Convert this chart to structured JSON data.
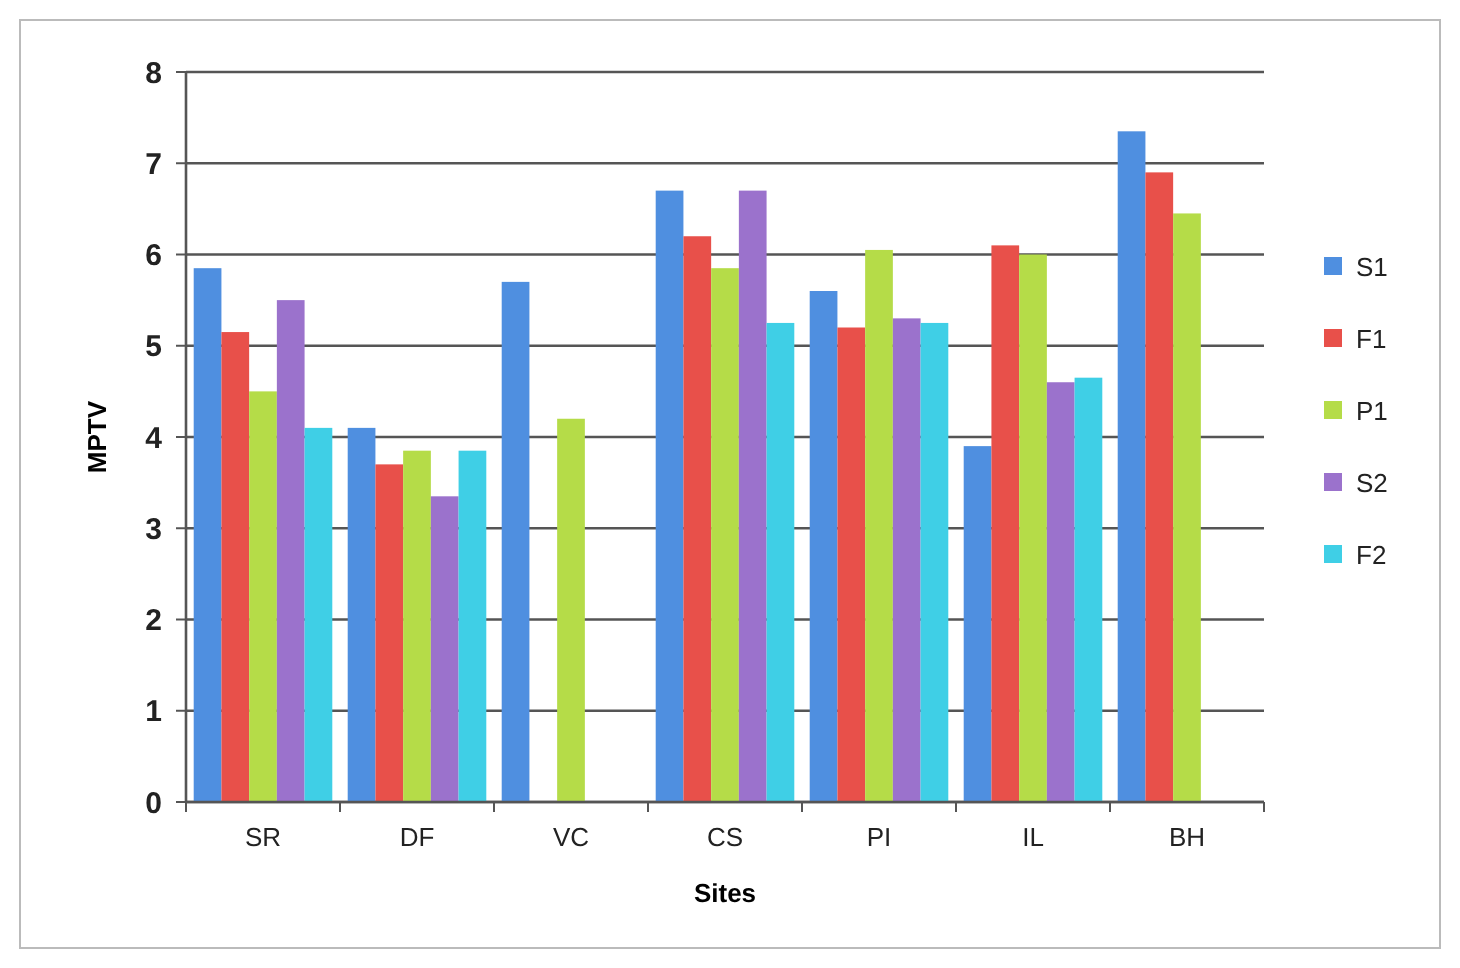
{
  "chart_data": {
    "type": "bar",
    "xlabel": "Sites",
    "ylabel": "MPTV",
    "categories": [
      "SR",
      "DF",
      "VC",
      "CS",
      "PI",
      "IL",
      "BH"
    ],
    "series": [
      {
        "name": "S1",
        "color": "#4f8fe0",
        "values": [
          5.85,
          4.1,
          5.7,
          6.7,
          5.6,
          3.9,
          7.35
        ]
      },
      {
        "name": "F1",
        "color": "#e8504a",
        "values": [
          5.15,
          3.7,
          null,
          6.2,
          5.2,
          6.1,
          6.9
        ]
      },
      {
        "name": "P1",
        "color": "#b5dc48",
        "values": [
          4.5,
          3.85,
          4.2,
          5.85,
          6.05,
          6.0,
          6.45
        ]
      },
      {
        "name": "S2",
        "color": "#9b72cc",
        "values": [
          5.5,
          3.35,
          null,
          6.7,
          5.3,
          4.6,
          null
        ]
      },
      {
        "name": "F2",
        "color": "#3fcfe6",
        "values": [
          4.1,
          3.85,
          null,
          5.25,
          5.25,
          4.65,
          null
        ]
      }
    ],
    "ylim": [
      0,
      8
    ],
    "yticks": [
      0,
      1,
      2,
      3,
      4,
      5,
      6,
      7,
      8
    ],
    "grid": "y",
    "legend": "right"
  }
}
